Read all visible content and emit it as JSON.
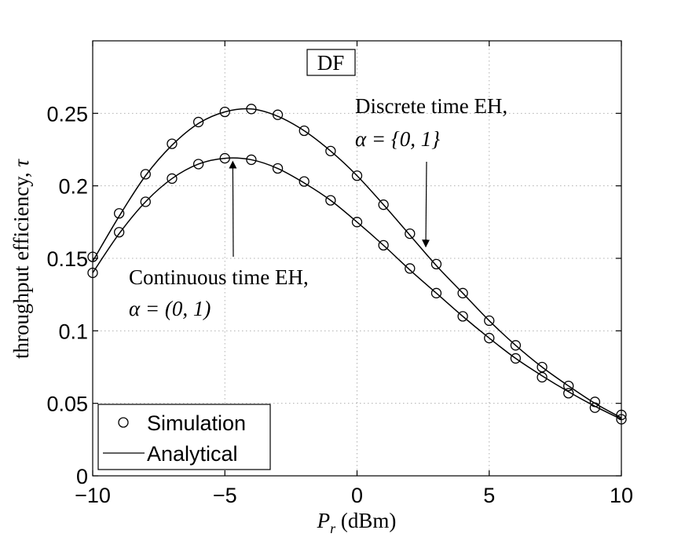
{
  "chart_data": {
    "type": "line",
    "title": "",
    "xlabel_main": "P",
    "xlabel_sub": "r",
    "xlabel_unit": " (dBm)",
    "ylabel_main": "throughput efficiency, ",
    "ylabel_symbol": "τ",
    "xlim": [
      -10,
      10
    ],
    "ylim": [
      0,
      0.3
    ],
    "xticks": [
      -10,
      -5,
      0,
      5,
      10
    ],
    "xtick_labels": [
      "−10",
      "−5",
      "0",
      "5",
      "10"
    ],
    "yticks": [
      0,
      0.05,
      0.1,
      0.15,
      0.2,
      0.25
    ],
    "ytick_labels": [
      "0",
      "0.05",
      "0.1",
      "0.15",
      "0.2",
      "0.25"
    ],
    "grid": true,
    "box_label": "DF",
    "legend": {
      "position": "bottom-left",
      "simulation_label": "Simulation",
      "analytical_label": "Analytical"
    },
    "series": [
      {
        "name": "Discrete time EH, α = {0,1}",
        "x": [
          -10,
          -9,
          -8,
          -7,
          -6,
          -5,
          -4,
          -3,
          -2,
          -1,
          0,
          1,
          2,
          3,
          4,
          5,
          6,
          7,
          8,
          9,
          10
        ],
        "sim": [
          0.151,
          0.181,
          0.208,
          0.229,
          0.244,
          0.251,
          0.253,
          0.249,
          0.238,
          0.224,
          0.207,
          0.187,
          0.167,
          0.146,
          0.126,
          0.107,
          0.09,
          0.075,
          0.062,
          0.051,
          0.042
        ],
        "analytical": [
          0.148,
          0.179,
          0.207,
          0.228,
          0.243,
          0.251,
          0.253,
          0.248,
          0.238,
          0.224,
          0.207,
          0.187,
          0.166,
          0.145,
          0.126,
          0.107,
          0.09,
          0.075,
          0.062,
          0.05,
          0.04
        ]
      },
      {
        "name": "Continuous time EH, α = (0,1)",
        "x": [
          -10,
          -9,
          -8,
          -7,
          -6,
          -5,
          -4,
          -3,
          -2,
          -1,
          0,
          1,
          2,
          3,
          4,
          5,
          6,
          7,
          8,
          9,
          10
        ],
        "sim": [
          0.14,
          0.168,
          0.189,
          0.205,
          0.215,
          0.219,
          0.218,
          0.212,
          0.203,
          0.19,
          0.175,
          0.159,
          0.143,
          0.126,
          0.11,
          0.095,
          0.081,
          0.068,
          0.057,
          0.047,
          0.039
        ],
        "analytical": [
          0.14,
          0.167,
          0.189,
          0.205,
          0.215,
          0.219,
          0.218,
          0.212,
          0.202,
          0.19,
          0.175,
          0.159,
          0.142,
          0.126,
          0.11,
          0.095,
          0.081,
          0.069,
          0.058,
          0.048,
          0.039
        ]
      }
    ],
    "annotations": [
      {
        "line1": "Discrete time EH,",
        "line2": "α = {0, 1}",
        "arrow_to": [
          2.6,
          0.158
        ]
      },
      {
        "line1": "Continuous time EH,",
        "line2": "α = (0, 1)",
        "arrow_to": [
          -4.7,
          0.219
        ]
      }
    ]
  }
}
